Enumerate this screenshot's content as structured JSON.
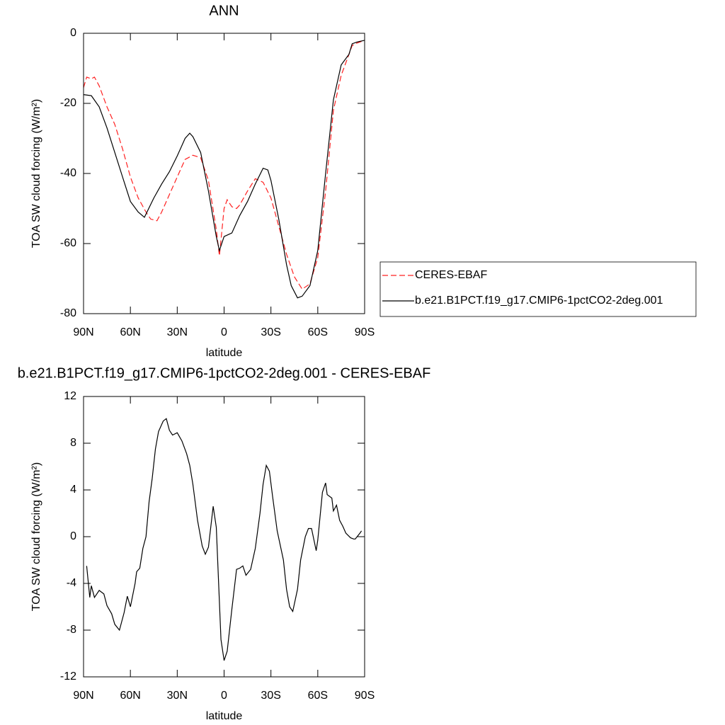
{
  "chart_data": [
    {
      "type": "line",
      "title": "ANN",
      "xlabel": "latitude",
      "ylabel": "TOA SW cloud forcing (W/m²)",
      "xlim": [
        90,
        -90
      ],
      "xticks": [
        {
          "value": 90,
          "label": "90N"
        },
        {
          "value": 60,
          "label": "60N"
        },
        {
          "value": 30,
          "label": "30N"
        },
        0,
        {
          "value": -30,
          "label": "30S"
        },
        {
          "value": -60,
          "label": "60S"
        },
        {
          "value": -90,
          "label": "90S"
        }
      ],
      "ylim": [
        -80,
        0
      ],
      "yticks": [
        0,
        -20,
        -40,
        -60,
        -80
      ],
      "legend": "right",
      "series": [
        {
          "name": "CERES-EBAF",
          "color": "#ff2020",
          "dash": true,
          "x": [
            90,
            88,
            85,
            83,
            80,
            75,
            70,
            65,
            60,
            55,
            50,
            47,
            43,
            40,
            35,
            30,
            25,
            20,
            15,
            10,
            5,
            3,
            0,
            -2,
            -5,
            -8,
            -10,
            -15,
            -20,
            -25,
            -30,
            -35,
            -40,
            -45,
            -50,
            -55,
            -60,
            -65,
            -70,
            -75,
            -80,
            -82,
            -85,
            -90
          ],
          "values": [
            -15.5,
            -12.5,
            -13,
            -12.5,
            -15,
            -21,
            -26,
            -33,
            -41,
            -47,
            -51,
            -53,
            -53.5,
            -51,
            -46,
            -41,
            -36,
            -34.8,
            -35.5,
            -42,
            -56,
            -63.5,
            -50,
            -47.5,
            -49.5,
            -50,
            -49,
            -45,
            -41.5,
            -42.5,
            -47,
            -55,
            -63,
            -69.5,
            -73,
            -71.5,
            -64,
            -45,
            -22,
            -12,
            -6,
            -3.5,
            -2.8,
            -2
          ]
        },
        {
          "name": "b.e21.B1PCT.f19_g17.CMIP6-1pctCO2-2deg.001",
          "color": "#000000",
          "dash": false,
          "x": [
            90,
            85,
            80,
            75,
            70,
            65,
            60,
            55,
            51,
            45,
            40,
            35,
            30,
            25,
            22,
            20,
            15,
            10,
            5,
            3,
            0,
            -5,
            -10,
            -15,
            -20,
            -25,
            -28,
            -30,
            -35,
            -40,
            -43,
            -47,
            -50,
            -55,
            -60,
            -65,
            -70,
            -75,
            -80,
            -82,
            -85,
            -90
          ],
          "values": [
            -17.5,
            -17.8,
            -21,
            -27,
            -34,
            -41,
            -48,
            -51,
            -52.5,
            -47,
            -43,
            -39.5,
            -35,
            -30,
            -28.5,
            -29.5,
            -34,
            -45,
            -58,
            -62,
            -58,
            -57,
            -52,
            -48,
            -43,
            -38.5,
            -39,
            -42,
            -53,
            -66,
            -72,
            -75.5,
            -75,
            -72,
            -62,
            -40,
            -19,
            -9,
            -6,
            -3,
            -2.5,
            -2
          ]
        }
      ]
    },
    {
      "type": "line",
      "title": "b.e21.B1PCT.f19_g17.CMIP6-1pctCO2-2deg.001 - CERES-EBAF",
      "xlabel": "latitude",
      "ylabel": "TOA SW cloud forcing (W/m²)",
      "xlim": [
        90,
        -90
      ],
      "xticks": [
        {
          "value": 90,
          "label": "90N"
        },
        {
          "value": 60,
          "label": "60N"
        },
        {
          "value": 30,
          "label": "30N"
        },
        0,
        {
          "value": -30,
          "label": "30S"
        },
        {
          "value": -60,
          "label": "60S"
        },
        {
          "value": -90,
          "label": "90S"
        }
      ],
      "ylim": [
        -12,
        12
      ],
      "yticks": [
        12,
        8,
        4,
        0,
        -4,
        -8,
        -12
      ],
      "series": [
        {
          "color": "#000000",
          "dash": false,
          "x": [
            88,
            86,
            85,
            83,
            80,
            77,
            75,
            72,
            70,
            67,
            64,
            62,
            60,
            57,
            56,
            54,
            52,
            50,
            48,
            46,
            44,
            42,
            39,
            37,
            35,
            33,
            30,
            27,
            24,
            22,
            20,
            17,
            14,
            12,
            10,
            7,
            5,
            2,
            0,
            -2,
            -5,
            -8,
            -10,
            -12,
            -14,
            -17,
            -20,
            -23,
            -25,
            -27,
            -29,
            -31,
            -34,
            -38,
            -40,
            -42,
            -44,
            -47,
            -49,
            -52,
            -54,
            -56,
            -59,
            -60,
            -63,
            -65,
            -66,
            -69,
            -70,
            -72,
            -74,
            -76,
            -78,
            -81,
            -83,
            -84,
            -87,
            -88
          ],
          "values": [
            -2.5,
            -5.2,
            -4.2,
            -5.2,
            -4.6,
            -4.9,
            -5.9,
            -6.6,
            -7.5,
            -8,
            -6.5,
            -5.1,
            -6,
            -4,
            -3,
            -2.7,
            -1,
            0,
            3,
            5,
            7.5,
            9,
            9.9,
            10.1,
            9.1,
            8.7,
            8.9,
            8.2,
            7.1,
            6.1,
            4.5,
            1.4,
            -0.8,
            -1.5,
            -0.9,
            2.6,
            0.8,
            -8.8,
            -10.6,
            -9.8,
            -6.2,
            -2.8,
            -2.7,
            -2.5,
            -3.3,
            -2.8,
            -1,
            2,
            4.5,
            6.1,
            5.6,
            3.5,
            0.5,
            -2,
            -4.5,
            -6,
            -6.4,
            -4.5,
            -2,
            0,
            0.7,
            0.7,
            -1.2,
            -0.3,
            3.8,
            4.6,
            3.6,
            3.3,
            2.2,
            2.7,
            1.4,
            0.9,
            0.3,
            -0.1,
            -0.2,
            -0.2,
            0.3,
            0.5
          ]
        }
      ]
    }
  ]
}
